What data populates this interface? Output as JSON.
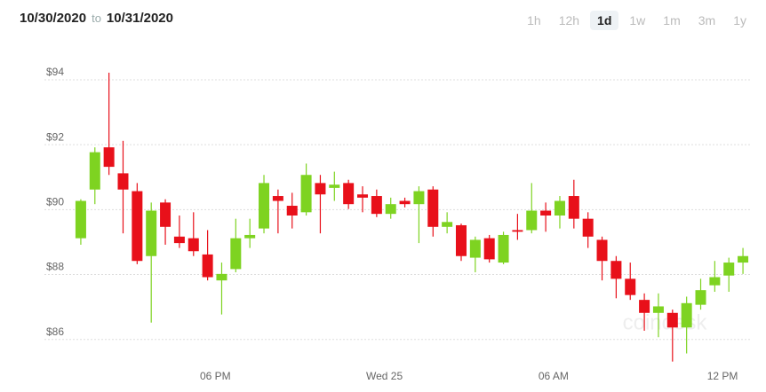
{
  "header": {
    "from": "10/30/2020",
    "to_word": "to",
    "to": "10/31/2020",
    "ranges": [
      "1h",
      "12h",
      "1d",
      "1w",
      "1m",
      "3m",
      "1y"
    ],
    "selected_range": 2
  },
  "chart_data": {
    "type": "candlestick",
    "watermark": "coindesk",
    "categories": [
      null,
      null,
      null,
      null,
      null,
      null,
      null,
      null,
      null,
      null,
      "06 PM",
      null,
      null,
      null,
      null,
      null,
      null,
      null,
      null,
      null,
      null,
      null,
      "Wed 25",
      null,
      null,
      null,
      null,
      null,
      null,
      null,
      null,
      null,
      null,
      null,
      "06 AM",
      null,
      null,
      null,
      null,
      null,
      null,
      null,
      null,
      null,
      null,
      null,
      "12 PM",
      null
    ],
    "open": [
      88.9,
      90.4,
      91.7,
      90.9,
      90.35,
      88.35,
      90.0,
      88.95,
      88.9,
      88.4,
      87.6,
      87.95,
      88.9,
      89.2,
      90.2,
      89.9,
      89.7,
      90.6,
      90.45,
      90.6,
      90.25,
      90.2,
      89.65,
      90.05,
      89.95,
      90.4,
      89.25,
      89.3,
      88.3,
      88.9,
      88.15,
      89.15,
      89.15,
      89.75,
      89.6,
      90.2,
      89.5,
      88.85,
      88.2,
      87.65,
      87.0,
      86.6,
      86.6,
      86.15,
      86.85,
      87.45,
      87.75,
      88.15
    ],
    "high": [
      90.1,
      91.7,
      94.0,
      91.9,
      90.6,
      90.0,
      90.1,
      89.6,
      89.7,
      89.15,
      88.15,
      89.5,
      89.5,
      90.85,
      90.4,
      90.3,
      91.2,
      90.85,
      90.95,
      90.7,
      90.5,
      90.4,
      90.15,
      90.15,
      90.5,
      90.5,
      89.7,
      89.35,
      88.95,
      89.0,
      89.1,
      89.65,
      90.6,
      90.0,
      90.2,
      90.7,
      89.7,
      88.95,
      88.35,
      88.15,
      87.2,
      87.2,
      86.7,
      87.1,
      87.65,
      88.2,
      88.3,
      88.6
    ],
    "low": [
      88.7,
      89.95,
      90.85,
      89.05,
      88.1,
      86.3,
      88.7,
      88.6,
      88.35,
      87.6,
      86.55,
      87.85,
      88.6,
      89.05,
      89.05,
      89.2,
      89.6,
      89.05,
      90.05,
      89.8,
      89.7,
      89.55,
      89.5,
      89.85,
      88.75,
      88.95,
      89.05,
      88.2,
      87.85,
      88.15,
      88.1,
      88.85,
      89.05,
      89.1,
      89.2,
      89.2,
      88.6,
      87.6,
      87.05,
      87.0,
      86.05,
      85.85,
      85.1,
      85.35,
      86.7,
      87.25,
      87.25,
      87.8
    ],
    "close": [
      90.05,
      91.55,
      91.1,
      90.4,
      88.2,
      89.75,
      89.25,
      88.75,
      88.5,
      87.7,
      87.8,
      88.9,
      89.0,
      90.6,
      90.05,
      89.6,
      90.85,
      90.25,
      90.55,
      89.95,
      90.15,
      89.65,
      89.95,
      89.95,
      90.35,
      89.25,
      89.4,
      88.35,
      88.85,
      88.25,
      89.0,
      89.1,
      89.75,
      89.6,
      90.05,
      89.5,
      88.95,
      88.2,
      87.65,
      87.15,
      86.6,
      86.8,
      86.15,
      86.9,
      87.3,
      87.7,
      88.15,
      88.35
    ],
    "up_color": "#7ed321",
    "down_color": "#e8101a",
    "ylim": [
      84.9,
      94.6
    ],
    "yticks": [
      {
        "value": 86,
        "label": "$86"
      },
      {
        "value": 88,
        "label": "$88"
      },
      {
        "value": 90,
        "label": "$90"
      },
      {
        "value": 92,
        "label": "$92"
      },
      {
        "value": 94,
        "label": "$94"
      }
    ],
    "grid": true
  }
}
